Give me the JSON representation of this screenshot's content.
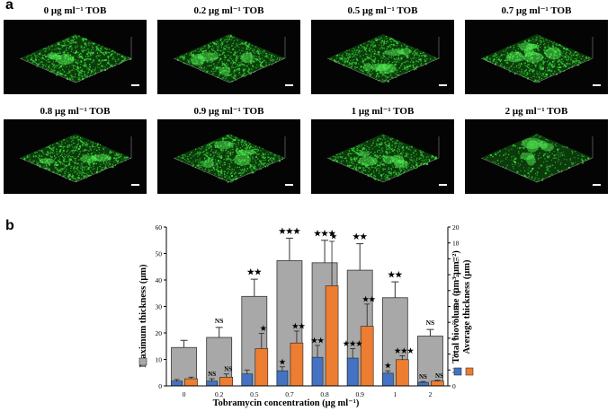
{
  "panel_labels": {
    "a": "a",
    "b": "b"
  },
  "images": [
    {
      "label": "0 μg ml⁻¹ TOB"
    },
    {
      "label": "0.2 μg ml⁻¹ TOB"
    },
    {
      "label": "0.5 μg ml⁻¹ TOB"
    },
    {
      "label": "0.7 μg ml⁻¹ TOB"
    },
    {
      "label": "0.8 μg ml⁻¹ TOB"
    },
    {
      "label": "0.9 μg ml⁻¹ TOB"
    },
    {
      "label": "1 μg ml⁻¹ TOB"
    },
    {
      "label": "2 μg ml⁻¹ TOB"
    }
  ],
  "colors": {
    "max": "#a8a8a8",
    "biovolume": "#4472c4",
    "avg": "#ed7d31",
    "tile_bg": "#040404",
    "biofilm": "#39d639"
  },
  "chart_data": {
    "type": "bar",
    "xlabel": "Tobramycin concentration (μg ml⁻¹)",
    "ylabel_left": "Maximum thickness (μm)",
    "ylabel_right_1": "Total biovolume (μm³ μm⁻²)",
    "ylabel_right_2": "Average thickness (μm)",
    "ylim_left": [
      0,
      60
    ],
    "ylim_right": [
      0,
      20
    ],
    "yticks_left": [
      0,
      10,
      20,
      30,
      40,
      50,
      60
    ],
    "yticks_right": [
      0,
      2,
      4,
      6,
      8,
      10,
      12,
      14,
      16,
      18,
      20
    ],
    "categories": [
      "0",
      "0.2",
      "0.5",
      "0.7",
      "0.8",
      "0.9",
      "1",
      "2"
    ],
    "series": [
      {
        "name": "Maximum thickness",
        "axis": "left",
        "values": [
          14.5,
          18.3,
          33.8,
          47.3,
          46.5,
          43.7,
          33.3,
          18.8
        ],
        "errors": [
          2.7,
          3.8,
          6.5,
          8.5,
          8.5,
          10,
          6,
          2.5
        ],
        "significance": [
          "",
          "NS",
          "★★",
          "★★★",
          "★★★",
          "★★",
          "★★",
          "NS"
        ]
      },
      {
        "name": "Total biovolume",
        "axis": "right",
        "values": [
          0.6,
          0.6,
          1.5,
          1.9,
          3.6,
          3.5,
          1.6,
          0.45
        ],
        "errors": [
          0.2,
          0.3,
          0.5,
          0.5,
          1.5,
          1.2,
          0.3,
          0.1
        ],
        "significance": [
          "",
          "NS",
          "",
          "★",
          "★★",
          "★★★",
          "★",
          "NS"
        ]
      },
      {
        "name": "Average thickness",
        "axis": "right",
        "values": [
          0.9,
          1.1,
          4.7,
          5.4,
          12.6,
          7.5,
          3.3,
          0.6
        ],
        "errors": [
          0.2,
          0.4,
          1.9,
          1.5,
          5.6,
          2.8,
          0.5,
          0.1
        ],
        "significance": [
          "",
          "NS",
          "★",
          "★★",
          "★",
          "★★",
          "★★★",
          "NS"
        ]
      }
    ]
  }
}
